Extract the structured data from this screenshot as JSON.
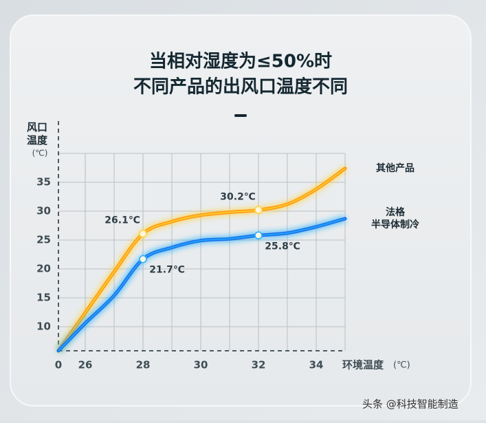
{
  "chart_data": {
    "type": "line",
    "title": "当相对湿度为≤50%时",
    "subtitle": "不同产品的出风口温度不同",
    "y_label": "风口 温度",
    "y_unit": "(℃)",
    "x_label": "环境温度",
    "x_unit": "(℃)",
    "origin_label": "0",
    "x": [
      25.07,
      26,
      27,
      28,
      29,
      30,
      31,
      32,
      33,
      34,
      35
    ],
    "series": [
      {
        "name": "其他产品",
        "color": "#ff9a10",
        "glow": "#ffd23a",
        "values": [
          5.83,
          12.4,
          19.5,
          26.1,
          28.2,
          29.3,
          29.8,
          30.2,
          31.2,
          33.8,
          37.4
        ],
        "value_labels": [
          null,
          null,
          null,
          "26.1℃",
          null,
          null,
          null,
          "30.2℃",
          null,
          null,
          null
        ]
      },
      {
        "name": "法格 半导体制冷",
        "color": "#1f6fe8",
        "glow": "#1fb0ff",
        "values": [
          5.83,
          10.6,
          15.4,
          21.7,
          23.7,
          24.9,
          25.2,
          25.8,
          26.2,
          27.3,
          28.7
        ],
        "value_labels": [
          null,
          null,
          null,
          "21.7℃",
          null,
          null,
          null,
          "25.8℃",
          null,
          null,
          null
        ]
      }
    ],
    "xlim": [
      25.07,
      35
    ],
    "ylim": [
      5.83,
      40
    ],
    "xticks": [
      26,
      28,
      30,
      32,
      34
    ],
    "yticks": [
      10,
      15,
      20,
      25,
      30,
      35
    ],
    "grid": true
  },
  "watermark": "头条 @科技智能制造"
}
